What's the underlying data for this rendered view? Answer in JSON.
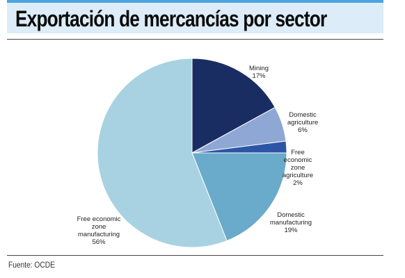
{
  "header": {
    "title": "Exportación de mercancías por sector"
  },
  "footer": {
    "source": "Fuente: OCDE"
  },
  "chart_data": {
    "type": "pie",
    "title": "Exportación de mercancías por sector",
    "start_angle_deg": 0,
    "direction": "clockwise",
    "slices": [
      {
        "label_lines": [
          "Mining",
          "17%"
        ],
        "value": 17,
        "color": "#1a2d63"
      },
      {
        "label_lines": [
          "Domestic",
          "agriculture",
          "6%"
        ],
        "value": 6,
        "color": "#8fa7d4"
      },
      {
        "label_lines": [
          "Free",
          "economic",
          "zone",
          "agriculture",
          "2%"
        ],
        "value": 2,
        "color": "#2d55a6"
      },
      {
        "label_lines": [
          "Domestic",
          "manufacturing",
          "19%"
        ],
        "value": 19,
        "color": "#6aaacb"
      },
      {
        "label_lines": [
          "Free economic",
          "zone",
          "manufacturing",
          "56%"
        ],
        "value": 56,
        "color": "#a8d2e1"
      }
    ]
  }
}
